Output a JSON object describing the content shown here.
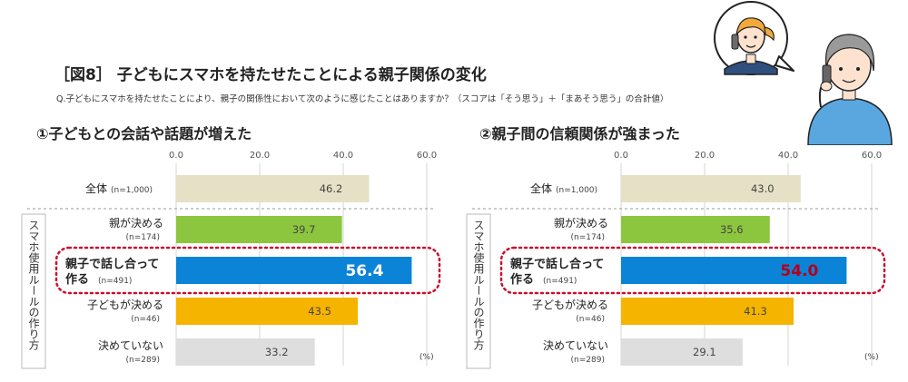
{
  "figure": {
    "title": "［図8］ 子どもにスマホを持たせたことによる親子関係の変化",
    "question": "Q.子どもにスマホを持たせたことにより、親子の関係性において次のように感じたことはありますか？（スコアは「そう思う」＋「まあそう思う」の合計値）",
    "group_label": "スマホ使用ルールの作り方",
    "unit": "(%)",
    "colors": {
      "overall": "#e6e0c6",
      "parents": "#8cc63e",
      "together": "#0b84d8",
      "child": "#f5b400",
      "none": "#dedede",
      "highlight_ring": "#c8102e",
      "label_56": "#ffffff",
      "label_54": "#b3001b"
    }
  },
  "chart_data": [
    {
      "type": "bar",
      "orientation": "horizontal",
      "title": "①子どもとの会話や話題が増えた",
      "xlim": [
        0,
        60
      ],
      "ticks": [
        "0.0",
        "20.0",
        "40.0",
        "60.0"
      ],
      "grid": true,
      "categories": [
        {
          "label": "全体",
          "n": "(n=1,000)"
        },
        {
          "label": "親が決める",
          "n": "(n=174)"
        },
        {
          "label": "親子で話し合って作る",
          "n": "(n=491)"
        },
        {
          "label": "子どもが決める",
          "n": "(n=46)"
        },
        {
          "label": "決めていない",
          "n": "(n=289)"
        }
      ],
      "values": [
        46.2,
        39.7,
        56.4,
        43.5,
        33.2
      ],
      "value_labels": [
        "46.2",
        "39.7",
        "56.4",
        "43.5",
        "33.2"
      ],
      "highlight_index": 2
    },
    {
      "type": "bar",
      "orientation": "horizontal",
      "title": "②親子間の信頼関係が強まった",
      "xlim": [
        0,
        60
      ],
      "ticks": [
        "0.0",
        "20.0",
        "40.0",
        "60.0"
      ],
      "grid": true,
      "categories": [
        {
          "label": "全体",
          "n": "(n=1,000)"
        },
        {
          "label": "親が決める",
          "n": "(n=174)"
        },
        {
          "label": "親子で話し合って作る",
          "n": "(n=491)"
        },
        {
          "label": "子どもが決める",
          "n": "(n=46)"
        },
        {
          "label": "決めていない",
          "n": "(n=289)"
        }
      ],
      "values": [
        43.0,
        35.6,
        54.0,
        41.3,
        29.1
      ],
      "value_labels": [
        "43.0",
        "35.6",
        "54.0",
        "41.3",
        "29.1"
      ],
      "highlight_index": 2
    }
  ]
}
